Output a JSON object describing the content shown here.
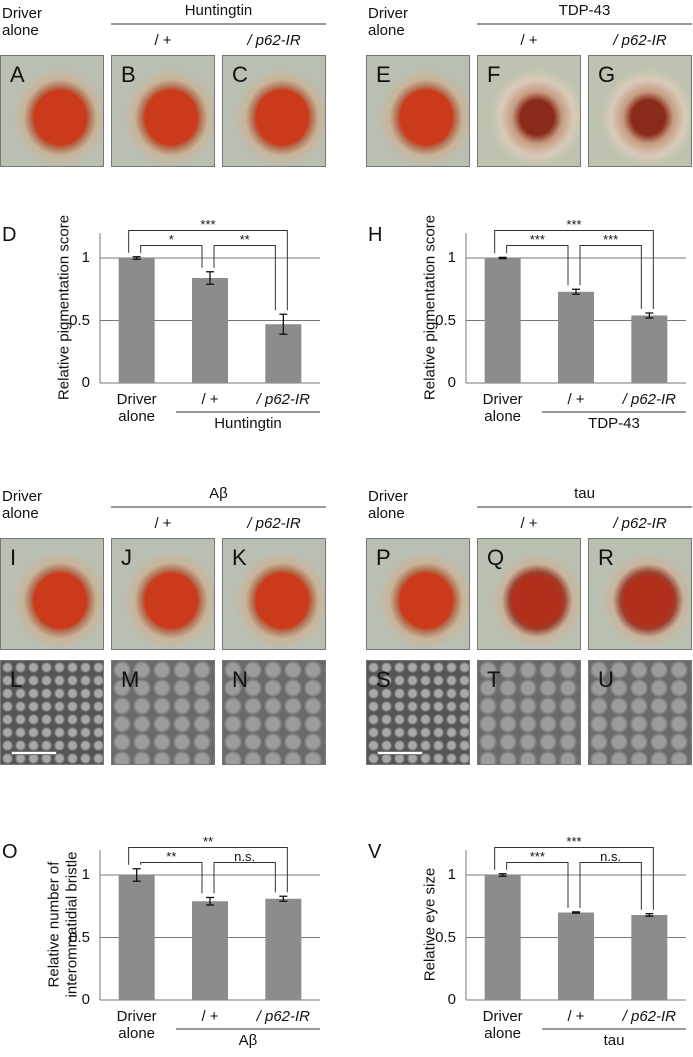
{
  "figure": {
    "groups": [
      {
        "driver": "Driver alone",
        "construct": "Huntingtin",
        "conditions": [
          "/ +",
          "/ p62-IR"
        ],
        "photos": [
          "A",
          "B",
          "C"
        ]
      },
      {
        "driver": "Driver alone",
        "construct": "TDP-43",
        "conditions": [
          "/ +",
          "/ p62-IR"
        ],
        "photos": [
          "E",
          "F",
          "G"
        ]
      },
      {
        "driver": "Driver alone",
        "construct": "Aβ",
        "conditions": [
          "/ +",
          "/ p62-IR"
        ],
        "photos": [
          "I",
          "J",
          "K"
        ],
        "sem": [
          "L",
          "M",
          "N"
        ]
      },
      {
        "driver": "Driver alone",
        "construct": "tau",
        "conditions": [
          "/ +",
          "/ p62-IR"
        ],
        "photos": [
          "P",
          "Q",
          "R"
        ],
        "sem": [
          "S",
          "T",
          "U"
        ]
      }
    ]
  },
  "chart_data": [
    {
      "type": "bar",
      "panel": "D",
      "ylabel": [
        "Relative pigmentation score"
      ],
      "categories": [
        "Driver alone",
        "/ +",
        "/ p62-IR"
      ],
      "group_label": "Huntingtin",
      "values": [
        1.0,
        0.84,
        0.47
      ],
      "errors": [
        0.01,
        0.05,
        0.08
      ],
      "significance": [
        "*",
        "**",
        "***"
      ],
      "ylim": [
        0,
        1.2
      ],
      "yticks": [
        0,
        0.5,
        1
      ],
      "grid": true,
      "color": "#8c8c8c"
    },
    {
      "type": "bar",
      "panel": "H",
      "ylabel": [
        "Relative pigmentation score"
      ],
      "categories": [
        "Driver alone",
        "/ +",
        "/ p62-IR"
      ],
      "group_label": "TDP-43",
      "values": [
        1.0,
        0.73,
        0.54
      ],
      "errors": [
        0.005,
        0.02,
        0.02
      ],
      "significance": [
        "***",
        "***",
        "***"
      ],
      "ylim": [
        0,
        1.2
      ],
      "yticks": [
        0,
        0.5,
        1
      ],
      "grid": true,
      "color": "#8c8c8c"
    },
    {
      "type": "bar",
      "panel": "O",
      "ylabel": [
        "Relative number of",
        "interommatidial bristle"
      ],
      "categories": [
        "Driver alone",
        "/ +",
        "/ p62-IR"
      ],
      "group_label": "Aβ",
      "values": [
        1.0,
        0.79,
        0.81
      ],
      "errors": [
        0.05,
        0.03,
        0.02
      ],
      "significance": [
        "**",
        "n.s.",
        "**"
      ],
      "ylim": [
        0,
        1.2
      ],
      "yticks": [
        0,
        0.5,
        1
      ],
      "grid": true,
      "color": "#8c8c8c"
    },
    {
      "type": "bar",
      "panel": "V",
      "ylabel": [
        "Relative eye size"
      ],
      "categories": [
        "Driver alone",
        "/ +",
        "/ p62-IR"
      ],
      "group_label": "tau",
      "values": [
        1.0,
        0.7,
        0.68
      ],
      "errors": [
        0.01,
        0.005,
        0.01
      ],
      "significance": [
        "***",
        "n.s.",
        "***"
      ],
      "ylim": [
        0,
        1.2
      ],
      "yticks": [
        0,
        0.5,
        1
      ],
      "grid": true,
      "color": "#8c8c8c"
    }
  ]
}
